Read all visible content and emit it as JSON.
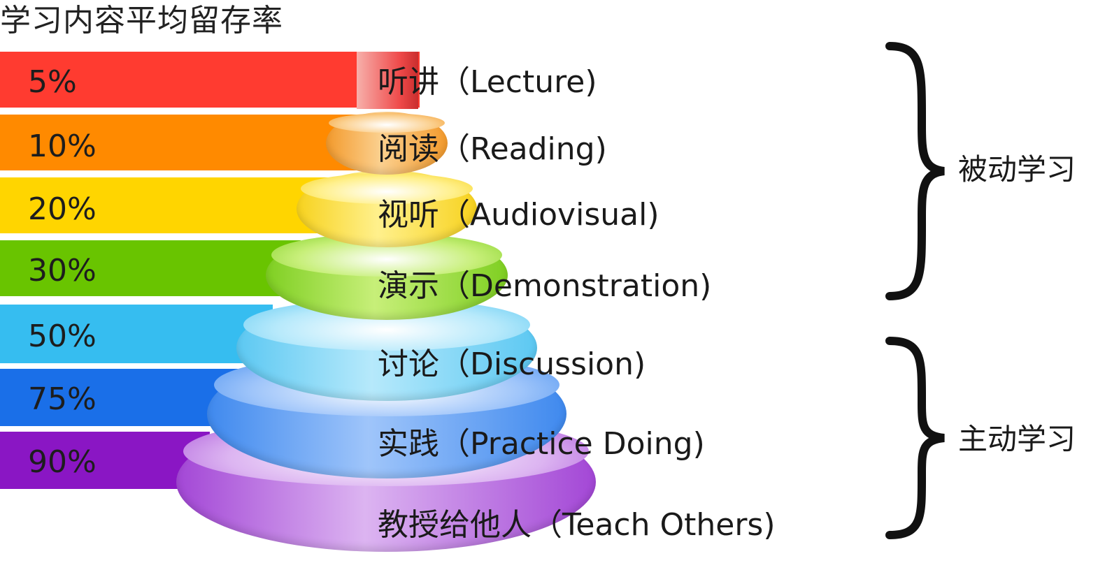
{
  "title": "学习内容平均留存率",
  "tiers": [
    {
      "percent": "5%",
      "label": "听讲（Lecture)",
      "value": 5,
      "band_color": "#ff3b30",
      "tier_color": "#ef4a4a",
      "tier_top": "#f7b0ab"
    },
    {
      "percent": "10%",
      "label": "阅读（Reading)",
      "value": 10,
      "band_color": "#ff8a00",
      "tier_color": "#f39a2c",
      "tier_top": "#fbd08f"
    },
    {
      "percent": "20%",
      "label": "视听（Audiovisual)",
      "value": 20,
      "band_color": "#ffd500",
      "tier_color": "#f7d21e",
      "tier_top": "#fff08c"
    },
    {
      "percent": "30%",
      "label": "演示（Demonstration)",
      "value": 30,
      "band_color": "#69c400",
      "tier_color": "#7fcf22",
      "tier_top": "#c7ef79"
    },
    {
      "percent": "50%",
      "label": "讨论（Discussion)",
      "value": 50,
      "band_color": "#36bdf0",
      "tier_color": "#5cc8f2",
      "tier_top": "#b6e9fb"
    },
    {
      "percent": "75%",
      "label": "实践（Practice Doing)",
      "value": 75,
      "band_color": "#1a6fe8",
      "tier_color": "#3f89ee",
      "tier_top": "#9fc5fa"
    },
    {
      "percent": "90%",
      "label": "教授给他人（Teach Others)",
      "value": 90,
      "band_color": "#8a16c4",
      "tier_color": "#a347d6",
      "tier_top": "#dcb4f1"
    }
  ],
  "groups": [
    {
      "label": "被动学习"
    },
    {
      "label": "主动学习"
    }
  ]
}
